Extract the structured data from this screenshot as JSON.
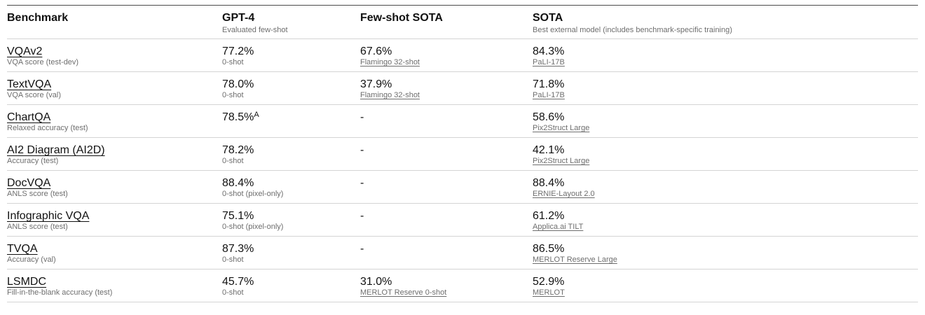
{
  "header": {
    "benchmark": "Benchmark",
    "gpt4": "GPT-4",
    "gpt4_sub": "Evaluated few-shot",
    "fewshot": "Few-shot SOTA",
    "sota": "SOTA",
    "sota_sub": "Best external model (includes benchmark-specific training)"
  },
  "rows": [
    {
      "name": "VQAv2",
      "metric": "VQA score (test-dev)",
      "gpt4": "77.2%",
      "gpt4_note": "0-shot",
      "fewshot": "67.6%",
      "fewshot_model": "Flamingo 32-shot",
      "sota": "84.3%",
      "sota_model": "PaLI-17B"
    },
    {
      "name": "TextVQA",
      "metric": "VQA score (val)",
      "gpt4": "78.0%",
      "gpt4_note": "0-shot",
      "fewshot": "37.9%",
      "fewshot_model": "Flamingo 32-shot",
      "sota": "71.8%",
      "sota_model": "PaLI-17B"
    },
    {
      "name": "ChartQA",
      "metric": "Relaxed accuracy (test)",
      "gpt4": "78.5%",
      "gpt4_sup": "A",
      "gpt4_note": "",
      "fewshot": "-",
      "fewshot_model": "",
      "sota": "58.6%",
      "sota_model": "Pix2Struct Large"
    },
    {
      "name": "AI2 Diagram (AI2D)",
      "metric": "Accuracy (test)",
      "gpt4": "78.2%",
      "gpt4_note": "0-shot",
      "fewshot": "-",
      "fewshot_model": "",
      "sota": "42.1%",
      "sota_model": "Pix2Struct Large"
    },
    {
      "name": "DocVQA",
      "metric": "ANLS score (test)",
      "gpt4": "88.4%",
      "gpt4_note": "0-shot (pixel-only)",
      "fewshot": "-",
      "fewshot_model": "",
      "sota": "88.4%",
      "sota_model": "ERNIE-Layout 2.0"
    },
    {
      "name": "Infographic VQA",
      "metric": "ANLS score (test)",
      "gpt4": "75.1%",
      "gpt4_note": "0-shot (pixel-only)",
      "fewshot": "-",
      "fewshot_model": "",
      "sota": "61.2%",
      "sota_model": "Applica.ai TILT"
    },
    {
      "name": "TVQA",
      "metric": "Accuracy (val)",
      "gpt4": "87.3%",
      "gpt4_note": "0-shot",
      "fewshot": "-",
      "fewshot_model": "",
      "sota": "86.5%",
      "sota_model": "MERLOT Reserve Large"
    },
    {
      "name": "LSMDC",
      "metric": "Fill-in-the-blank accuracy (test)",
      "gpt4": "45.7%",
      "gpt4_note": "0-shot",
      "fewshot": "31.0%",
      "fewshot_model": "MERLOT Reserve 0-shot",
      "sota": "52.9%",
      "sota_model": "MERLOT"
    }
  ]
}
